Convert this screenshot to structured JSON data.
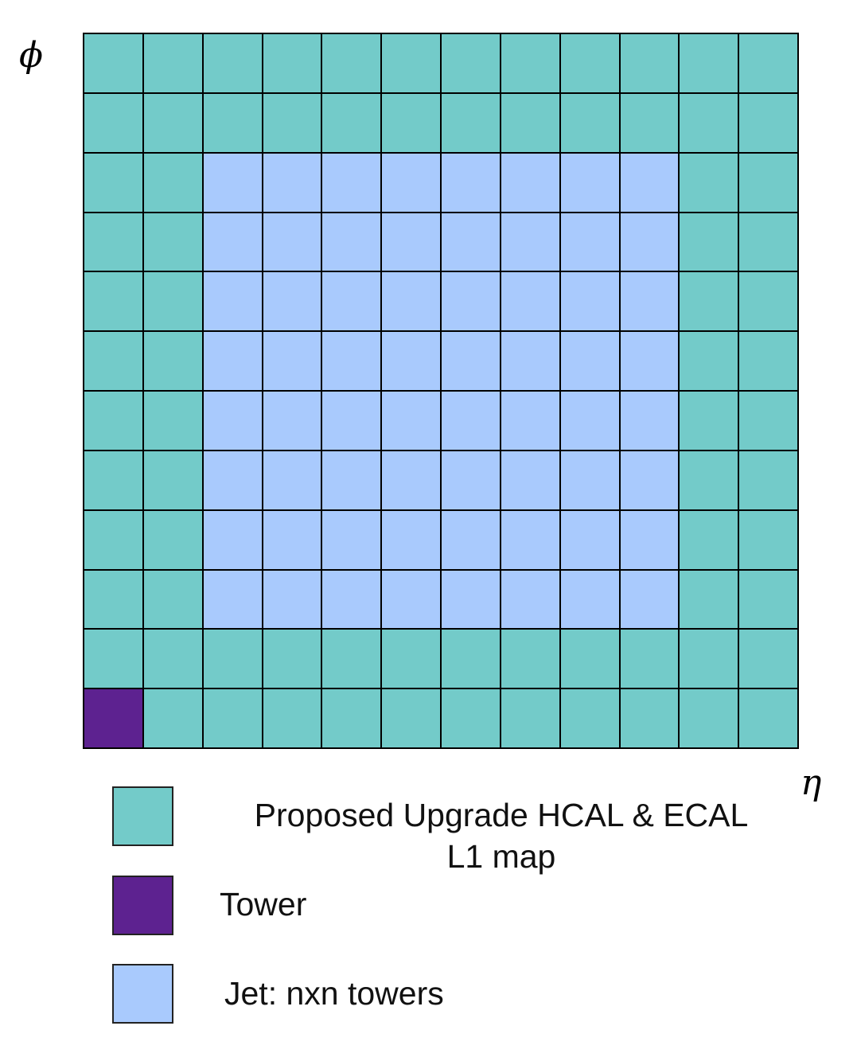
{
  "axes": {
    "y_label": "ϕ",
    "x_label": "η"
  },
  "grid": {
    "rows": 12,
    "cols": 12,
    "colors": {
      "map": "#73CBC9",
      "tower": "#5D2290",
      "jet": "#A9CAFD"
    },
    "tower_cell": {
      "row": 11,
      "col": 0
    },
    "jet_region": {
      "row_start": 2,
      "row_end": 9,
      "col_start": 2,
      "col_end": 9
    }
  },
  "legend": {
    "items": [
      {
        "key": "map",
        "label_line1": "Proposed Upgrade HCAL & ECAL",
        "label_line2": "L1 map",
        "color": "#73CBC9"
      },
      {
        "key": "tower",
        "label": "Tower",
        "color": "#5D2290"
      },
      {
        "key": "jet",
        "label": "Jet: nxn towers",
        "color": "#A9CAFD"
      }
    ]
  }
}
